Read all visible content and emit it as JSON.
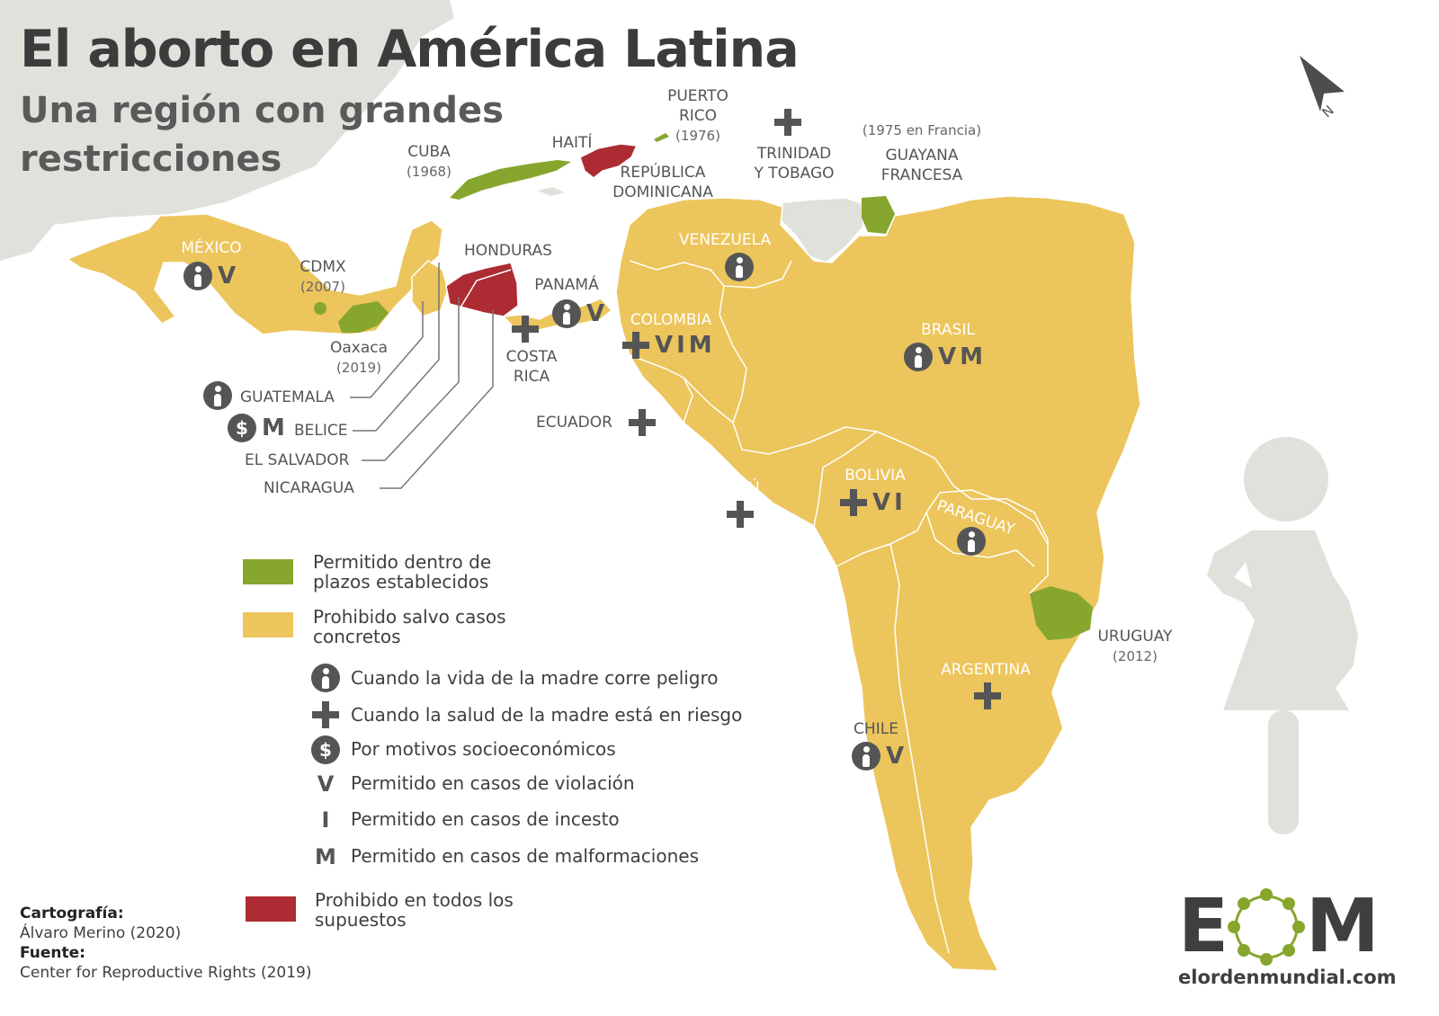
{
  "title": "El aborto en América Latina",
  "subtitle": "Una región con grandes restricciones",
  "colors": {
    "green_permitted": "#87a62d",
    "yellow_restricted": "#ecc55c",
    "red_prohibited": "#ad2b32",
    "grey_other": "#e1e1dc",
    "symbol_dark": "#555555"
  },
  "north_arrow": {
    "label": "N",
    "icon": "north-arrow-icon"
  },
  "map_labels": {
    "mexico": "MÉXICO",
    "mexico_symbols": "V",
    "cdmx": "CDMX",
    "cdmx_year": "(2007)",
    "oaxaca": "Oaxaca",
    "oaxaca_year": "(2019)",
    "cuba": "CUBA",
    "cuba_year": "(1968)",
    "haiti": "HAITÍ",
    "puerto_rico": "PUERTO",
    "puerto_rico_2": "RICO",
    "puerto_rico_year": "(1976)",
    "rep_dominicana": "REPÚBLICA",
    "rep_dominicana_2": "DOMINICANA",
    "trinidad": "TRINIDAD",
    "trinidad_2": "Y TOBAGO",
    "guayana_year": "(1975 en Francia)",
    "guayana": "GUAYANA",
    "guayana_2": "FRANCESA",
    "honduras": "HONDURAS",
    "panama": "PANAMÁ",
    "panama_symbols": "V",
    "costa_rica": "COSTA",
    "costa_rica_2": "RICA",
    "venezuela": "VENEZUELA",
    "colombia": "COLOMBIA",
    "colombia_symbols": "VIM",
    "brasil": "BRASIL",
    "brasil_symbols": "VM",
    "ecuador": "ECUADOR",
    "peru": "PERÚ",
    "bolivia": "BOLIVIA",
    "bolivia_symbols": "VI",
    "paraguay": "PARAGUAY",
    "uruguay": "URUGUAY",
    "uruguay_year": "(2012)",
    "argentina": "ARGENTINA",
    "chile": "CHILE",
    "chile_symbols": "V",
    "guatemala": "GUATEMALA",
    "belice": "BELICE",
    "belice_symbols": "M",
    "el_salvador": "EL SALVADOR",
    "nicaragua": "NICARAGUA"
  },
  "legend": {
    "colors": [
      {
        "label": "Permitido dentro de plazos establecidos",
        "line1": "Permitido dentro de",
        "line2": "plazos establecidos",
        "color": "#87a62d"
      },
      {
        "label": "Prohibido salvo casos concretos",
        "line1": "Prohibido salvo casos",
        "line2": "concretos",
        "color": "#ecc55c"
      },
      {
        "label": "Prohibido en todos los supuestos",
        "line1": "Prohibido en todos los",
        "line2": "supuestos",
        "color": "#ad2b32"
      }
    ],
    "symbols": [
      {
        "icon": "life-icon",
        "text": "Cuando la vida de la madre corre peligro"
      },
      {
        "icon": "plus-icon",
        "text": "Cuando la salud de la madre está en riesgo"
      },
      {
        "icon": "dollar-icon",
        "text": "Por motivos socioeconómicos",
        "glyph": "$"
      },
      {
        "glyph": "V",
        "text": "Permitido en casos de violación"
      },
      {
        "glyph": "I",
        "text": "Permitido en casos de incesto"
      },
      {
        "glyph": "M",
        "text": "Permitido en casos de malformaciones"
      }
    ]
  },
  "credits": {
    "cartografia_label": "Cartografía:",
    "cartografia": "Álvaro Merino (2020)",
    "fuente_label": "Fuente:",
    "fuente": "Center for Reproductive Rights (2019)"
  },
  "logo": {
    "letter_e": "E",
    "letter_m": "M",
    "url": "elordenmundial.com"
  }
}
